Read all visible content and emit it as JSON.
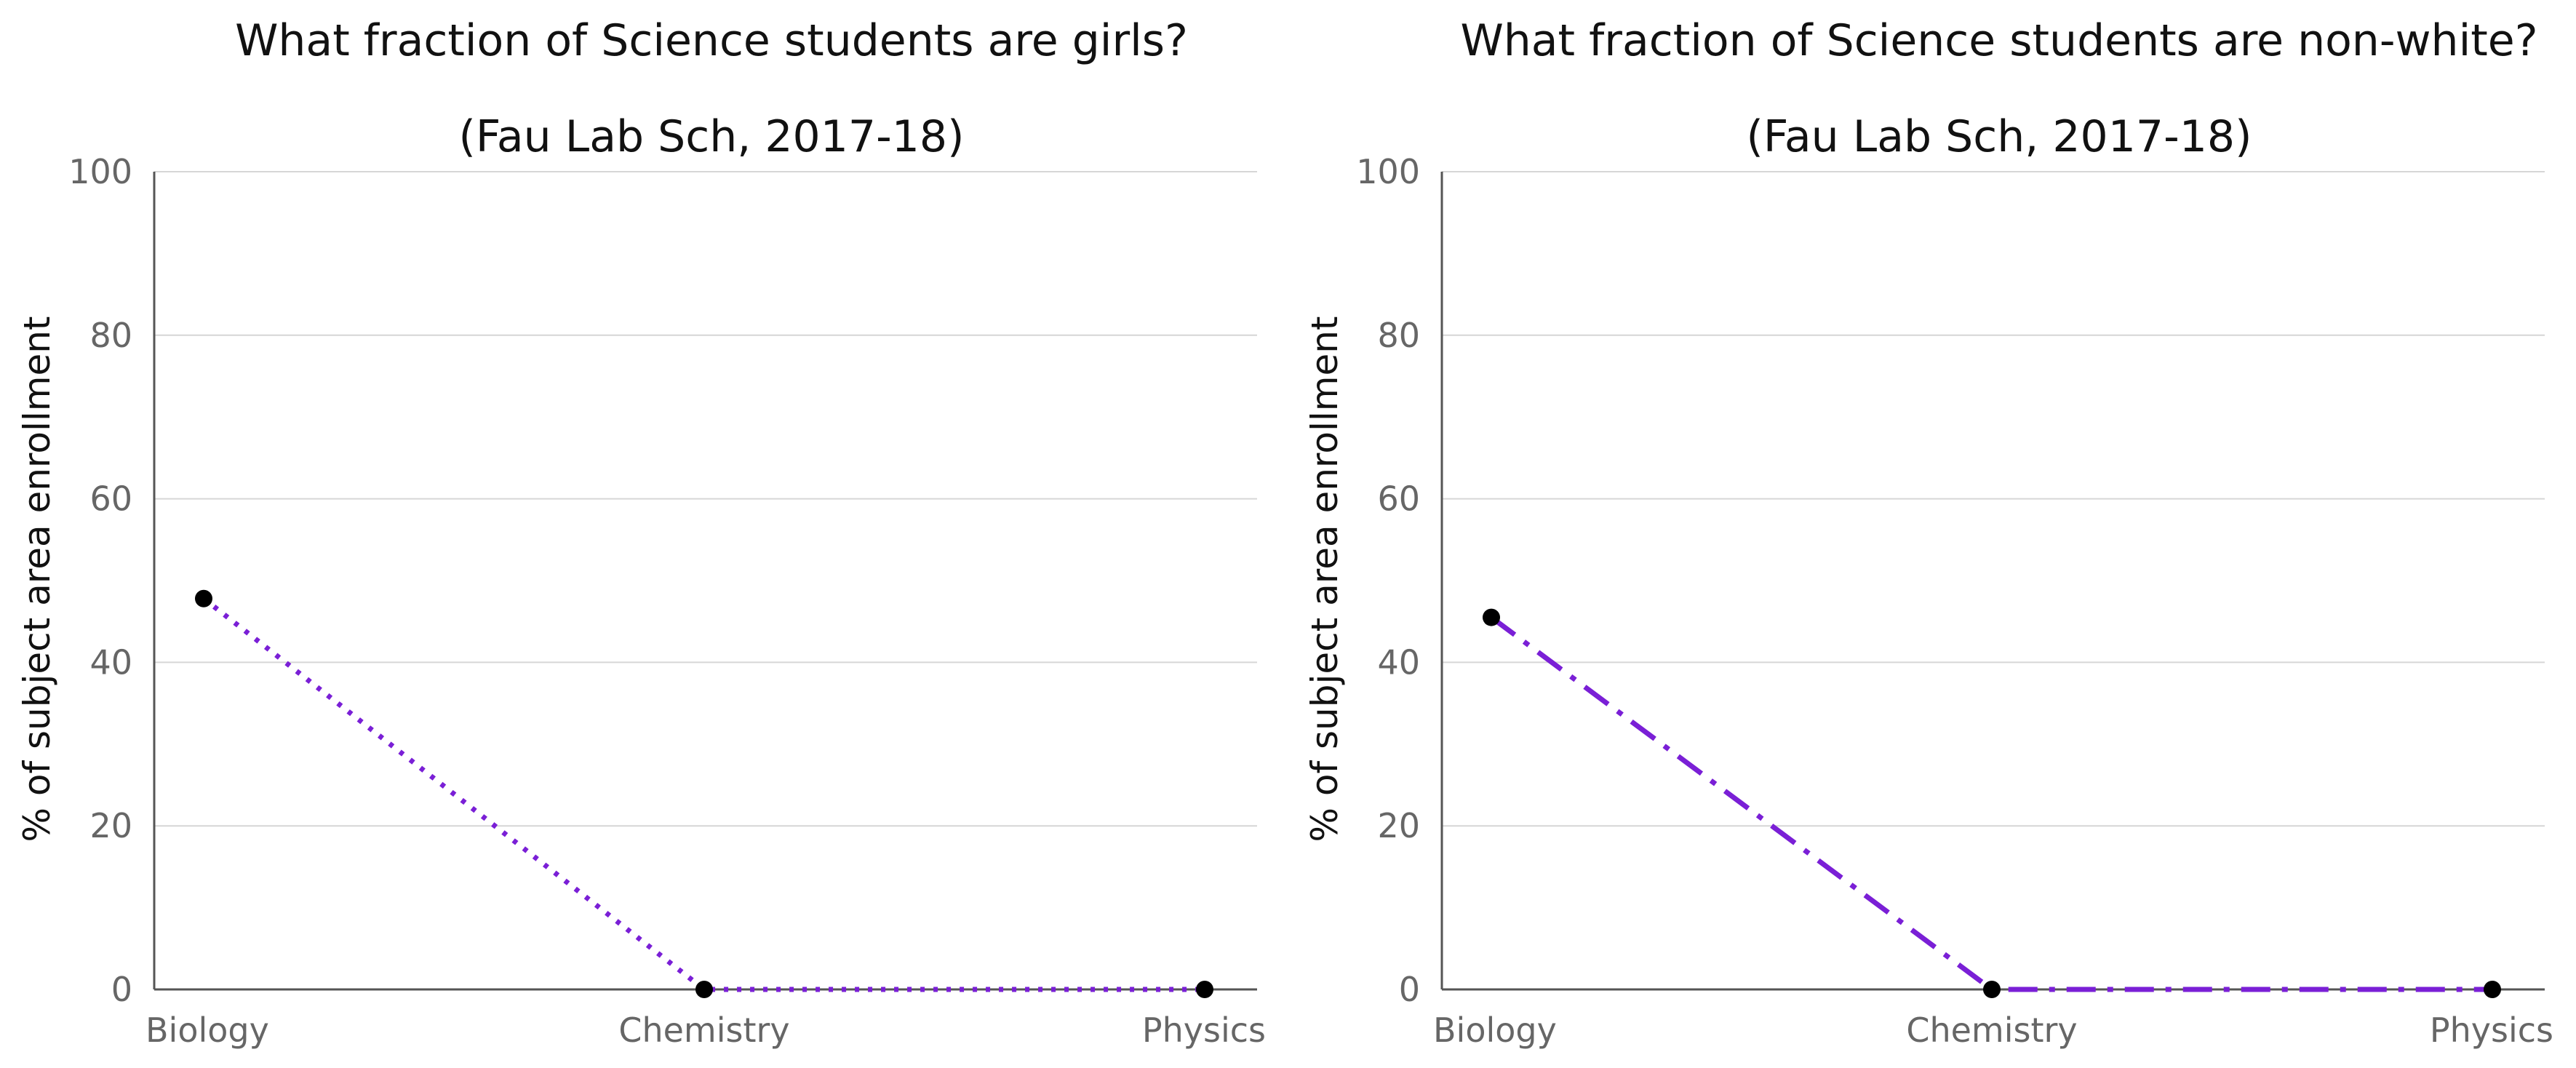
{
  "chart_data": [
    {
      "type": "line",
      "title": "What fraction of Science students are girls?",
      "subtitle": "(Fau Lab Sch, 2017-18)",
      "xlabel": "",
      "ylabel": "% of subject area enrollment",
      "categories": [
        "Biology",
        "Chemistry",
        "Physics"
      ],
      "series": [
        {
          "values": [
            47.8,
            0,
            0
          ],
          "line_style": "dotted",
          "color": "#7a1fd6",
          "marker_color": "#000000"
        }
      ],
      "ylim": [
        0,
        100
      ],
      "yticks": [
        0,
        20,
        40,
        60,
        80,
        100
      ],
      "grid": true
    },
    {
      "type": "line",
      "title": "What fraction of Science students are non-white?",
      "subtitle": "(Fau Lab Sch, 2017-18)",
      "xlabel": "",
      "ylabel": "% of subject area enrollment",
      "categories": [
        "Biology",
        "Chemistry",
        "Physics"
      ],
      "series": [
        {
          "values": [
            45.5,
            0,
            0
          ],
          "line_style": "dashdot",
          "color": "#7a1fd6",
          "marker_color": "#000000"
        }
      ],
      "ylim": [
        0,
        100
      ],
      "yticks": [
        0,
        20,
        40,
        60,
        80,
        100
      ],
      "grid": true
    }
  ]
}
